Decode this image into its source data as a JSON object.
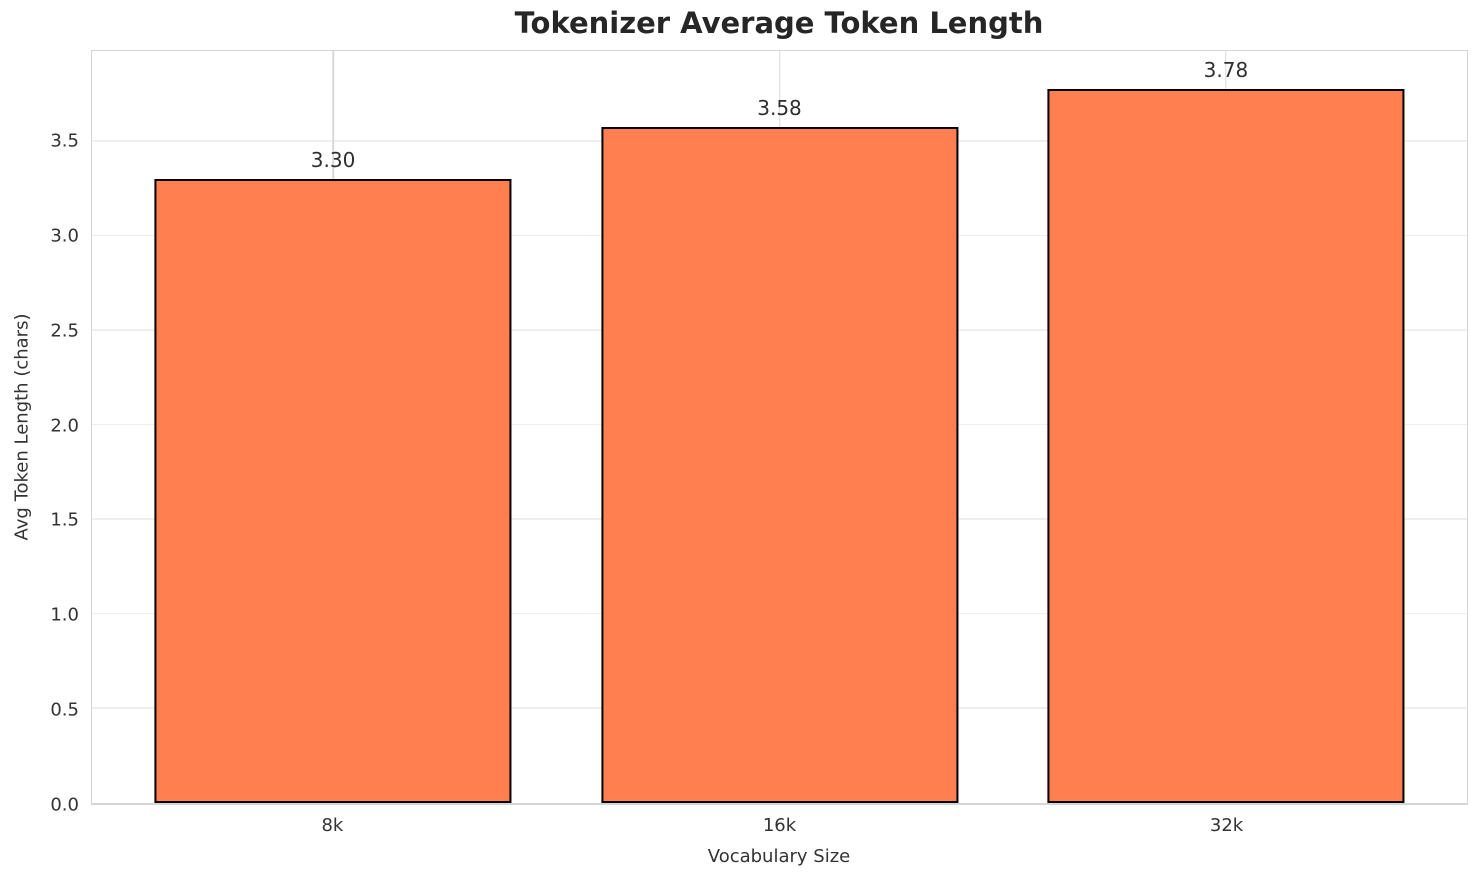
{
  "chart_data": {
    "type": "bar",
    "title": "Tokenizer Average Token Length",
    "xlabel": "Vocabulary Size",
    "ylabel": "Avg Token Length (chars)",
    "categories": [
      "8k",
      "16k",
      "32k"
    ],
    "values": [
      3.3,
      3.58,
      3.78
    ],
    "value_labels": [
      "3.30",
      "3.58",
      "3.78"
    ],
    "yticks": [
      0.0,
      0.5,
      1.0,
      1.5,
      2.0,
      2.5,
      3.0,
      3.5
    ],
    "ytick_labels": [
      "0.0",
      "0.5",
      "1.0",
      "1.5",
      "2.0",
      "2.5",
      "3.0",
      "3.5"
    ],
    "ylim": [
      0,
      3.98
    ],
    "xlim": [
      -0.54,
      2.54
    ],
    "bar_width_units": 0.8,
    "grid": "both",
    "legend": "none",
    "colors": {
      "bar_fill": "#FF7F50",
      "bar_edge": "#000000",
      "grid_horizontal": "#efefef",
      "grid_vertical": "#d9d9d9",
      "spine": "#d5d5d5",
      "title_text": "#262626",
      "tick_text": "#333333",
      "background": "#ffffff"
    }
  }
}
